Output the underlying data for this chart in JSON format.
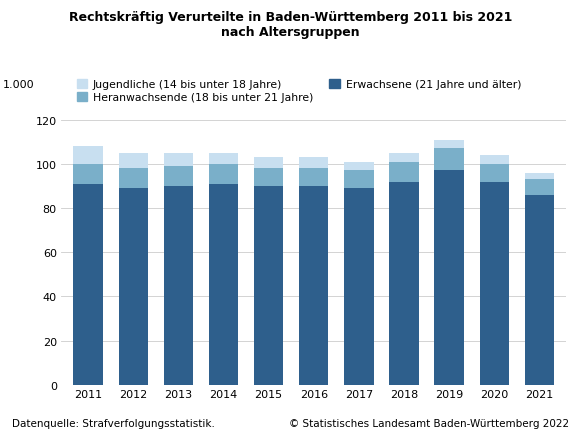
{
  "years": [
    2011,
    2012,
    2013,
    2014,
    2015,
    2016,
    2017,
    2018,
    2019,
    2020,
    2021
  ],
  "erwachsene": [
    91,
    89,
    90,
    91,
    90,
    90,
    89,
    92,
    97,
    92,
    86
  ],
  "heranwachsende": [
    9,
    9,
    9,
    9,
    8,
    8,
    8,
    9,
    10,
    8,
    7
  ],
  "jugendliche": [
    8,
    7,
    6,
    5,
    5,
    5,
    4,
    4,
    4,
    4,
    3
  ],
  "color_erwachsene": "#2e5f8c",
  "color_heranwachsende": "#7aafc9",
  "color_jugendliche": "#c8dff0",
  "title_line1": "Rechtskräftig Verurteilte in Baden-Württemberg 2011 bis 2021",
  "title_line2": "nach Altersgruppen",
  "ylabel_unit": "1.000",
  "legend_jugendliche": "Jugendliche (14 bis unter 18 Jahre)",
  "legend_heranwachsende": "Heranwachsende (18 bis unter 21 Jahre)",
  "legend_erwachsene": "Erwachsene (21 Jahre und älter)",
  "source_left": "Datenquelle: Strafverfolgungsstatistik.",
  "source_right": "© Statistisches Landesamt Baden-Württemberg 2022",
  "ylim": [
    0,
    120
  ],
  "yticks": [
    0,
    20,
    40,
    60,
    80,
    100,
    120
  ],
  "bar_width": 0.65,
  "background_color": "#ffffff",
  "grid_color": "#cccccc"
}
